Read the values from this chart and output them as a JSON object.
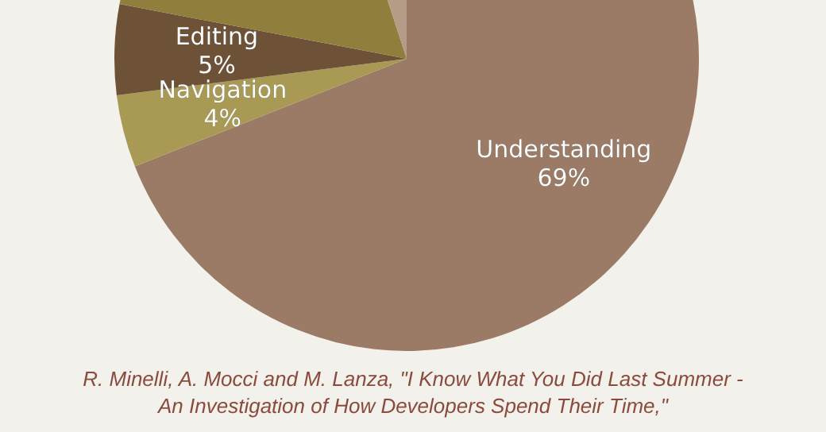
{
  "chart_data": {
    "type": "pie",
    "categories": [
      "Understanding",
      "Navigation",
      "Editing",
      null,
      null
    ],
    "values": [
      69,
      4,
      5,
      17,
      5
    ],
    "colors": [
      "#9c7b66",
      "#a89a55",
      "#6e5238",
      "#8f7e3c",
      "#b59c86"
    ],
    "value_labels": [
      "69%",
      "4%",
      "5%",
      null,
      null
    ],
    "annotations": [
      "R. Minelli, A. Mocci and M. Lanza, \"I Know What You Did Last Summer - An Investigation of How Developers Spend Their Time,\""
    ]
  }
}
